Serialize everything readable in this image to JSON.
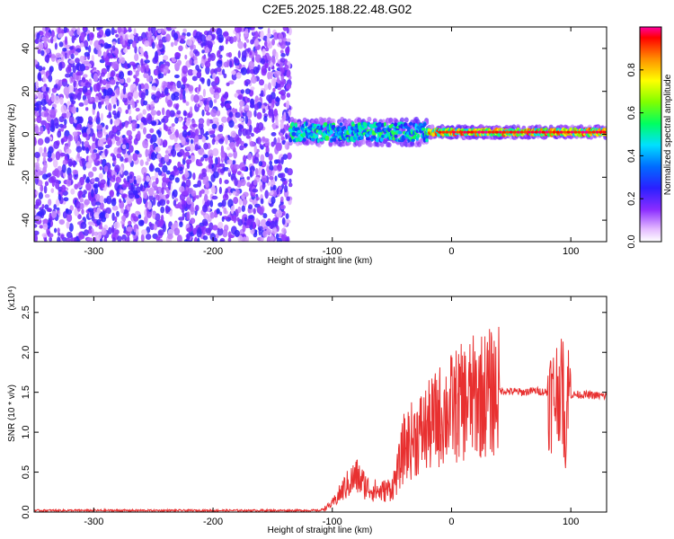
{
  "title": "C2E5.2025.188.22.48.G02",
  "chart_data": [
    {
      "type": "heatmap",
      "xlabel": "Height of straight line (km)",
      "ylabel": "Frequency (Hz)",
      "xlim": [
        -350,
        130
      ],
      "ylim": [
        -50,
        50
      ],
      "x_ticks": [
        -300,
        -200,
        -100,
        0,
        100
      ],
      "y_ticks": [
        -40,
        -20,
        0,
        20,
        40
      ],
      "colorbar": {
        "label": "Normalized spectral amplitude",
        "range": [
          0.0,
          1.0
        ],
        "ticks": [
          "0.0",
          "0.2",
          "0.4",
          "0.6",
          "0.8"
        ],
        "tick_values": [
          0.0,
          0.2,
          0.4,
          0.6,
          0.8
        ]
      },
      "regions": [
        {
          "x_range": [
            -350,
            -135
          ],
          "freq_range": [
            -50,
            50
          ],
          "amplitude_range": [
            0.05,
            0.25
          ]
        },
        {
          "x_range": [
            -135,
            130
          ],
          "freq_range": [
            -8,
            8
          ],
          "center_freq": 1,
          "amplitude_range": [
            0.3,
            1.0
          ]
        }
      ]
    },
    {
      "type": "line",
      "xlabel": "Height of straight line (km)",
      "ylabel": "SNR (10 * v/v)",
      "y_multiplier": "(x10⁴)",
      "xlim": [
        -350,
        130
      ],
      "ylim": [
        0,
        2.7
      ],
      "x_ticks": [
        -300,
        -200,
        -100,
        0,
        100
      ],
      "y_ticks": [
        "0.0",
        "0.5",
        "1.0",
        "1.5",
        "2.0",
        "2.5"
      ],
      "y_tick_values": [
        0.0,
        0.5,
        1.0,
        1.5,
        2.0,
        2.5
      ],
      "color": "#e83030",
      "profile": {
        "x": [
          -350,
          -340,
          -110,
          -100,
          -90,
          -80,
          -70,
          -60,
          -50,
          -45,
          -40,
          -30,
          -20,
          -10,
          0,
          20,
          40,
          60,
          70,
          80,
          85,
          90,
          95,
          98,
          100,
          110,
          130
        ],
        "y": [
          0.02,
          0.02,
          0.02,
          0.1,
          0.3,
          0.45,
          0.3,
          0.25,
          0.3,
          0.5,
          0.8,
          0.95,
          1.05,
          1.2,
          1.3,
          1.45,
          1.52,
          1.5,
          1.52,
          1.5,
          1.4,
          1.6,
          1.3,
          1.5,
          1.47,
          1.47,
          1.45
        ]
      }
    }
  ]
}
